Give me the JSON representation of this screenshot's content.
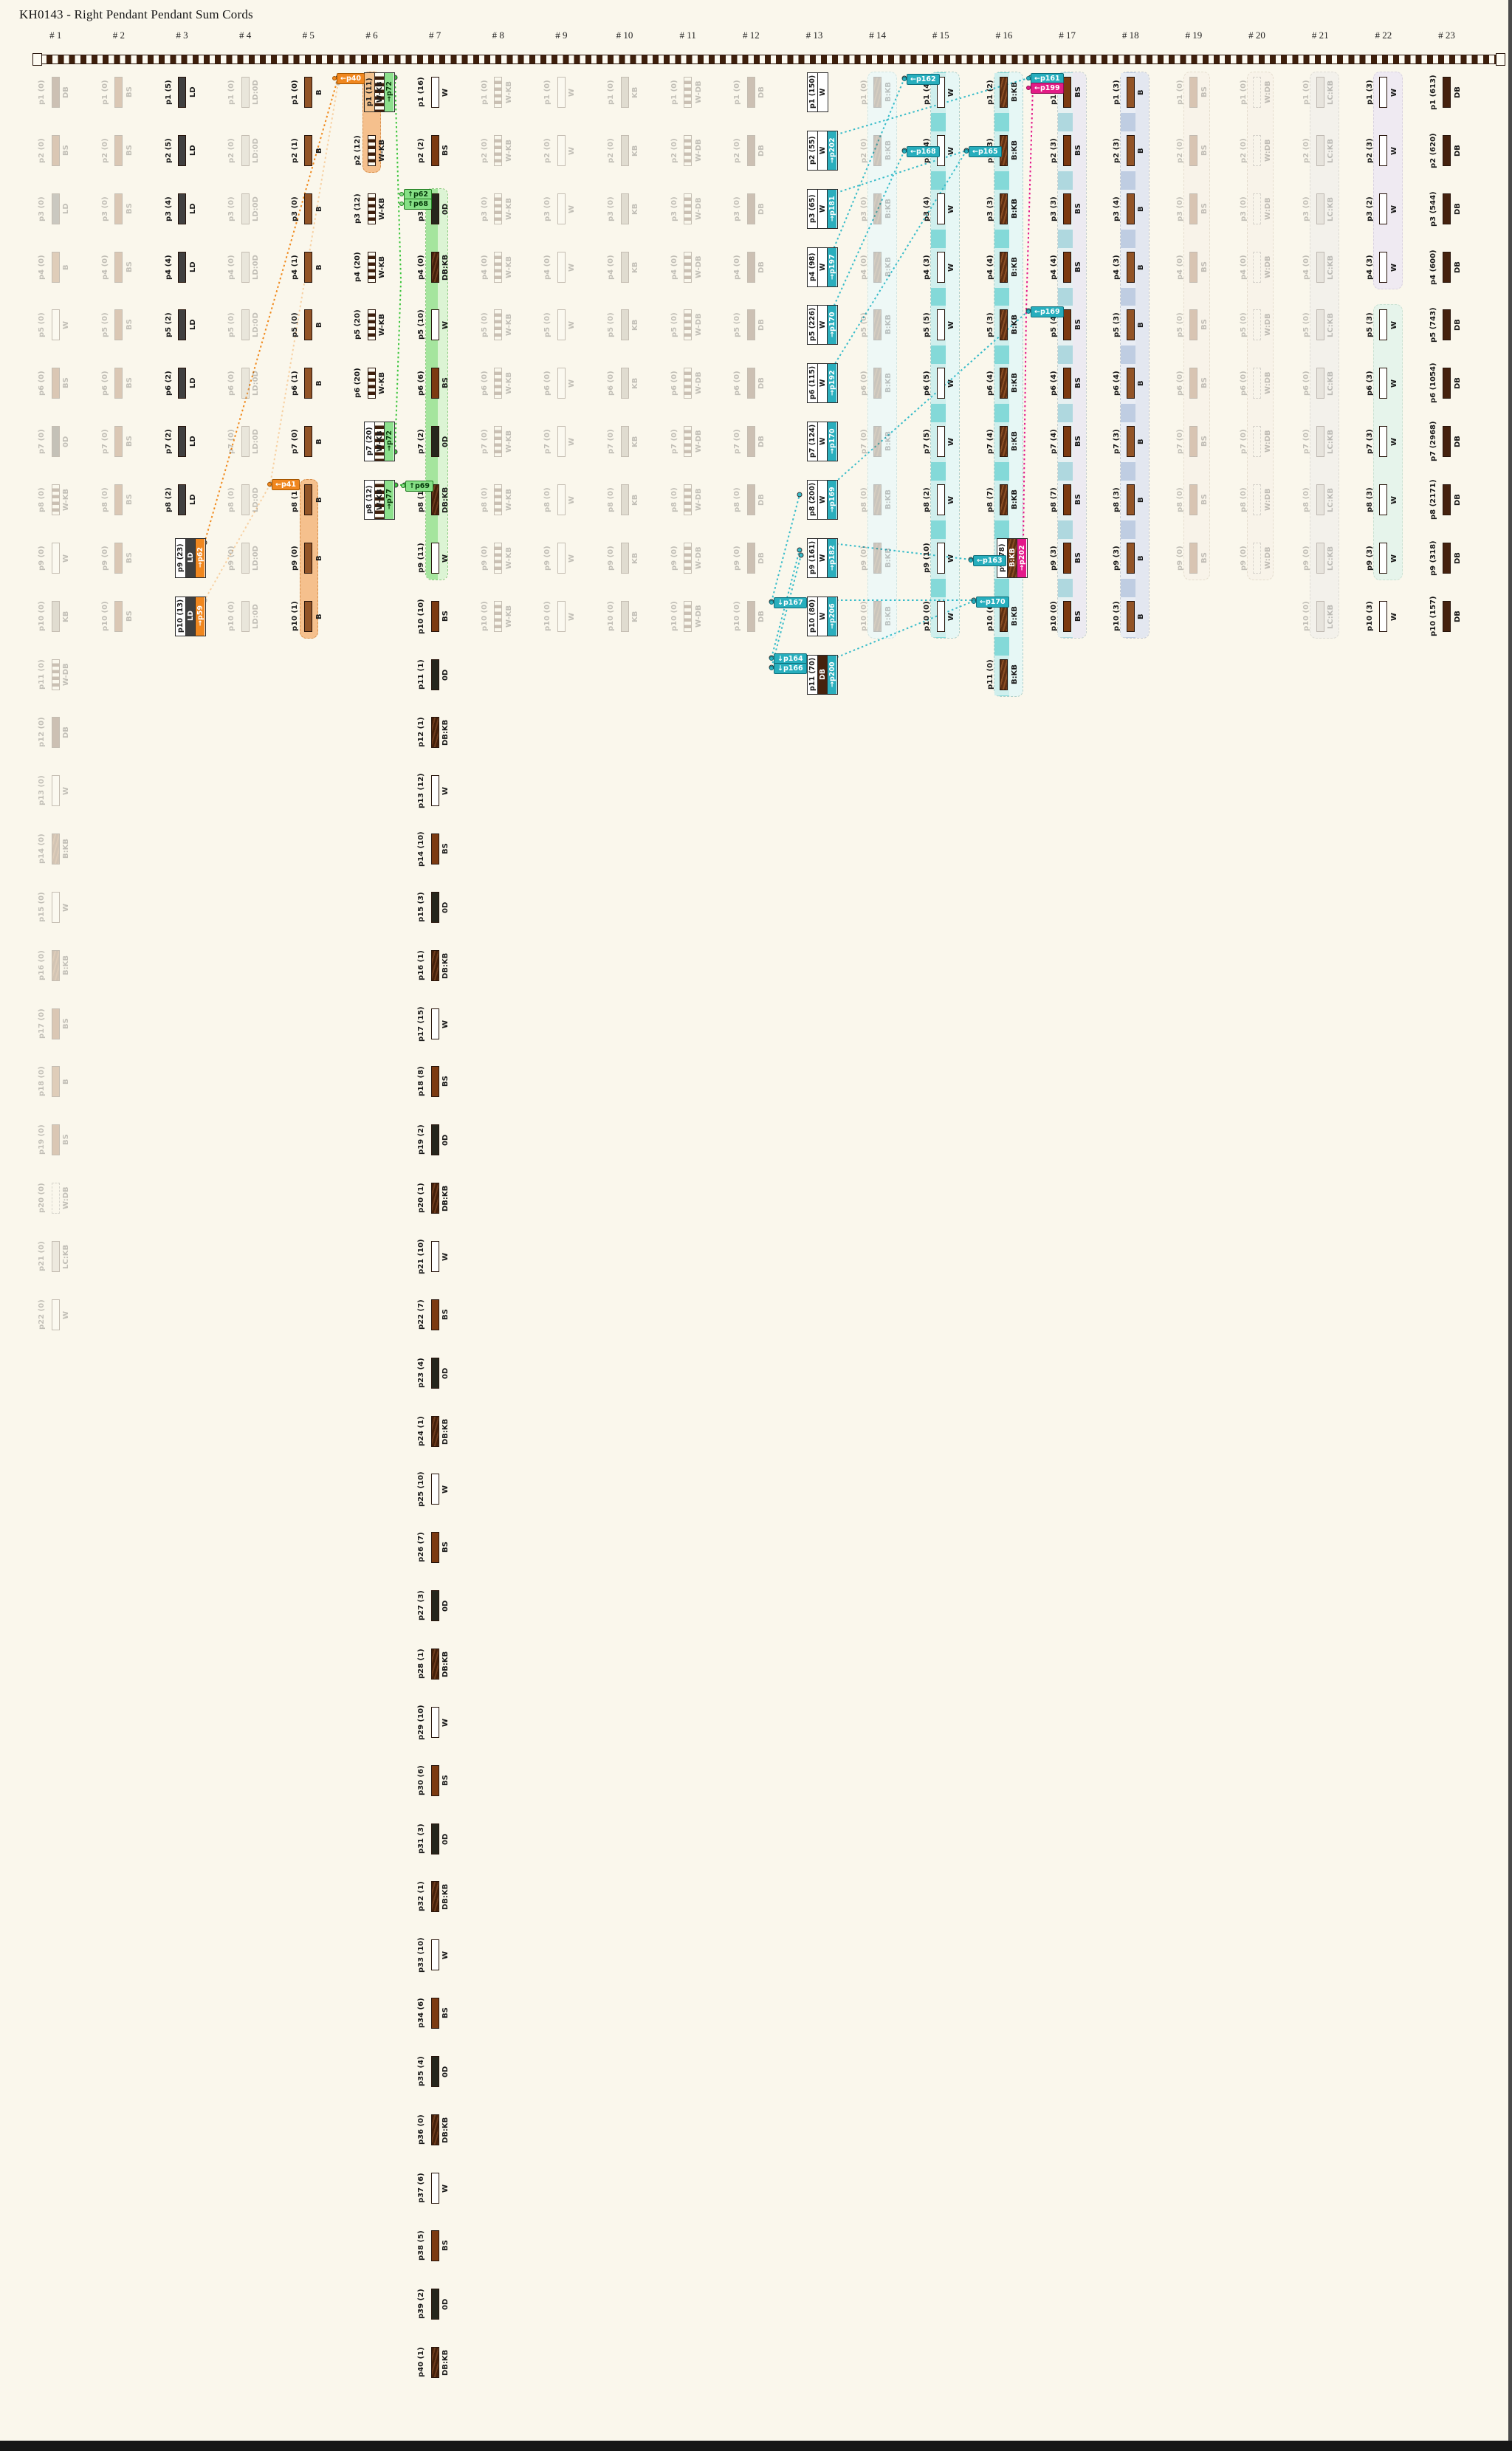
{
  "title": "KH0143 - Right Pendant Pendant Sum Cords",
  "headers": [
    "# 1",
    "# 2",
    "# 3",
    "# 4",
    "# 5",
    "# 6",
    "# 7",
    "# 8",
    "# 9",
    "# 10",
    "# 11",
    "# 12",
    "# 13",
    "# 14",
    "# 15",
    "# 16",
    "# 17",
    "# 18",
    "# 19",
    "# 20",
    "# 21",
    "# 22",
    "# 23"
  ],
  "palette": {
    "orange": "#F0871F",
    "green": "#4DC54D",
    "green_fill": "#8CE08C",
    "teal": "#2BAEBD",
    "magenta": "#E3198A",
    "cream": "#FAF7EC",
    "cord_dark": "#3E1F0C"
  },
  "columns": [
    {
      "n": 1,
      "faded": true,
      "value": 0,
      "codes": [
        "DB",
        "BS",
        "LD",
        "B",
        "W",
        "BS",
        "0D",
        "W-KB",
        "W",
        "KB",
        "W-DB",
        "DB",
        "W",
        "B:KB",
        "W",
        "B:KB",
        "BS",
        "B",
        "BS",
        "W:DB",
        "LC:KB",
        "W"
      ]
    },
    {
      "n": 2,
      "faded": true,
      "uniform": {
        "code": "BS",
        "count": 10,
        "value": 0
      }
    },
    {
      "n": 3,
      "faded": false,
      "pendants": [
        [
          "p1",
          5,
          "LD"
        ],
        [
          "p2",
          5,
          "LD"
        ],
        [
          "p3",
          4,
          "LD"
        ],
        [
          "p4",
          4,
          "LD"
        ],
        [
          "p5",
          2,
          "LD"
        ],
        [
          "p6",
          2,
          "LD"
        ],
        [
          "p7",
          2,
          "LD"
        ],
        [
          "p8",
          2,
          "LD"
        ],
        [
          "p9",
          23,
          "LD",
          "→p62",
          "orange",
          true
        ],
        [
          "p10",
          13,
          "LD",
          "→p59",
          "orange",
          true
        ]
      ]
    },
    {
      "n": 4,
      "faded": true,
      "uniform": {
        "code": "LD:0D",
        "count": 10,
        "value": 0
      }
    },
    {
      "n": 5,
      "faded": false,
      "pendants": [
        [
          "p1",
          0,
          "B"
        ],
        [
          "p2",
          1,
          "B"
        ],
        [
          "p3",
          0,
          "B"
        ],
        [
          "p4",
          1,
          "B"
        ],
        [
          "p5",
          0,
          "B"
        ],
        [
          "p6",
          1,
          "B"
        ],
        [
          "p7",
          0,
          "B"
        ],
        [
          "p8",
          1,
          "B"
        ],
        [
          "p9",
          0,
          "B"
        ],
        [
          "p10",
          1,
          "B"
        ]
      ]
    },
    {
      "n": 6,
      "faded": false,
      "pendants": [
        [
          "p1",
          11,
          "W-KB",
          "→p72",
          "green",
          true,
          "tan"
        ],
        [
          "p2",
          12,
          "W-KB"
        ],
        [
          "p3",
          12,
          "W-KB"
        ],
        [
          "p4",
          20,
          "W-KB"
        ],
        [
          "p5",
          20,
          "W-KB"
        ],
        [
          "p6",
          20,
          "W-KB"
        ],
        [
          "p7",
          20,
          "W-KB",
          "→p72",
          "green",
          true
        ],
        [
          "p8",
          12,
          "W-KB",
          "→p77",
          "green",
          true
        ]
      ]
    },
    {
      "n": 7,
      "faded": false,
      "pendants": [
        [
          "p1",
          16,
          "W"
        ],
        [
          "p2",
          2,
          "BS"
        ],
        [
          "p3",
          1,
          "0D"
        ],
        [
          "p4",
          0,
          "DB:KB"
        ],
        [
          "p5",
          10,
          "W"
        ],
        [
          "p6",
          6,
          "BS"
        ],
        [
          "p7",
          2,
          "0D"
        ],
        [
          "p8",
          1,
          "DB:KB"
        ],
        [
          "p9",
          11,
          "W"
        ],
        [
          "p10",
          10,
          "BS"
        ],
        [
          "p11",
          1,
          "0D"
        ],
        [
          "p12",
          1,
          "DB:KB"
        ],
        [
          "p13",
          12,
          "W"
        ],
        [
          "p14",
          10,
          "BS"
        ],
        [
          "p15",
          3,
          "0D"
        ],
        [
          "p16",
          1,
          "DB:KB"
        ],
        [
          "p17",
          15,
          "W"
        ],
        [
          "p18",
          8,
          "BS"
        ],
        [
          "p19",
          2,
          "0D"
        ],
        [
          "p20",
          1,
          "DB:KB"
        ],
        [
          "p21",
          10,
          "W"
        ],
        [
          "p22",
          7,
          "BS"
        ],
        [
          "p23",
          4,
          "0D"
        ],
        [
          "p24",
          1,
          "DB:KB"
        ],
        [
          "p25",
          10,
          "W"
        ],
        [
          "p26",
          7,
          "BS"
        ],
        [
          "p27",
          3,
          "0D"
        ],
        [
          "p28",
          1,
          "DB:KB"
        ],
        [
          "p29",
          10,
          "W"
        ],
        [
          "p30",
          6,
          "BS"
        ],
        [
          "p31",
          3,
          "0D"
        ],
        [
          "p32",
          1,
          "DB:KB"
        ],
        [
          "p33",
          10,
          "W"
        ],
        [
          "p34",
          6,
          "BS"
        ],
        [
          "p35",
          4,
          "0D"
        ],
        [
          "p36",
          0,
          "DB:KB"
        ],
        [
          "p37",
          6,
          "W"
        ],
        [
          "p38",
          5,
          "BS"
        ],
        [
          "p39",
          2,
          "0D"
        ],
        [
          "p40",
          1,
          "DB:KB"
        ]
      ]
    },
    {
      "n": 8,
      "faded": true,
      "uniform": {
        "code": "W-KB",
        "count": 10,
        "value": 0
      }
    },
    {
      "n": 9,
      "faded": true,
      "uniform": {
        "code": "W",
        "count": 10,
        "value": 0
      }
    },
    {
      "n": 10,
      "faded": true,
      "uniform": {
        "code": "KB",
        "count": 10,
        "value": 0
      }
    },
    {
      "n": 11,
      "faded": true,
      "uniform": {
        "code": "W-DB",
        "count": 10,
        "value": 0
      }
    },
    {
      "n": 12,
      "faded": true,
      "uniform": {
        "code": "DB",
        "count": 10,
        "value": 0
      }
    },
    {
      "n": 13,
      "faded": false,
      "pendants": [
        [
          "p1",
          150,
          "W",
          null,
          null,
          true
        ],
        [
          "p2",
          55,
          "W",
          "→p202",
          "teal",
          true
        ],
        [
          "p3",
          65,
          "W",
          "→p181",
          "teal",
          true
        ],
        [
          "p4",
          98,
          "W",
          "→p197",
          "teal",
          true
        ],
        [
          "p5",
          226,
          "W",
          "→p170",
          "teal",
          true
        ],
        [
          "p6",
          115,
          "W",
          "→p192",
          "teal",
          true
        ],
        [
          "p7",
          124,
          "W",
          "→p170",
          "teal",
          true
        ],
        [
          "p8",
          200,
          "W",
          "→p169",
          "teal",
          true
        ],
        [
          "p9",
          161,
          "W",
          "→p182",
          "teal",
          true
        ],
        [
          "p10",
          80,
          "W",
          "→p206",
          "teal",
          true
        ],
        [
          "p11",
          70,
          "DB",
          "→p200",
          "teal",
          true
        ]
      ]
    },
    {
      "n": 14,
      "faded": true,
      "uniform": {
        "code": "B:KB",
        "count": 10,
        "value": 0
      }
    },
    {
      "n": 15,
      "faded": false,
      "pendants": [
        [
          "p1",
          4,
          "W"
        ],
        [
          "p2",
          4,
          "W"
        ],
        [
          "p3",
          4,
          "W"
        ],
        [
          "p4",
          3,
          "W"
        ],
        [
          "p5",
          5,
          "W"
        ],
        [
          "p6",
          5,
          "W"
        ],
        [
          "p7",
          5,
          "W"
        ],
        [
          "p8",
          2,
          "W"
        ],
        [
          "p9",
          10,
          "W"
        ],
        [
          "p10",
          0,
          "W"
        ]
      ]
    },
    {
      "n": 16,
      "faded": false,
      "pendants": [
        [
          "p1",
          2,
          "B:KB"
        ],
        [
          "p2",
          3,
          "B:KB"
        ],
        [
          "p3",
          3,
          "B:KB"
        ],
        [
          "p4",
          4,
          "B:KB"
        ],
        [
          "p5",
          3,
          "B:KB"
        ],
        [
          "p6",
          4,
          "B:KB"
        ],
        [
          "p7",
          4,
          "B:KB"
        ],
        [
          "p8",
          7,
          "B:KB"
        ],
        [
          "p9",
          78,
          "B:KB",
          "→p202",
          "magenta",
          true
        ],
        [
          "p10",
          6,
          "B:KB"
        ],
        [
          "p11",
          0,
          "B:KB"
        ]
      ]
    },
    {
      "n": 17,
      "faded": false,
      "pendants": [
        [
          "p1",
          3,
          "BS"
        ],
        [
          "p2",
          3,
          "BS"
        ],
        [
          "p3",
          3,
          "BS"
        ],
        [
          "p4",
          4,
          "BS"
        ],
        [
          "p5",
          4,
          "BS"
        ],
        [
          "p6",
          4,
          "BS"
        ],
        [
          "p7",
          4,
          "BS"
        ],
        [
          "p8",
          7,
          "BS"
        ],
        [
          "p9",
          3,
          "BS"
        ],
        [
          "p10",
          0,
          "BS"
        ]
      ]
    },
    {
      "n": 18,
      "faded": false,
      "pendants": [
        [
          "p1",
          3,
          "B"
        ],
        [
          "p2",
          3,
          "B"
        ],
        [
          "p3",
          4,
          "B"
        ],
        [
          "p4",
          3,
          "B"
        ],
        [
          "p5",
          3,
          "B"
        ],
        [
          "p6",
          4,
          "B"
        ],
        [
          "p7",
          3,
          "B"
        ],
        [
          "p8",
          3,
          "B"
        ],
        [
          "p9",
          3,
          "B"
        ],
        [
          "p10",
          3,
          "B"
        ]
      ]
    },
    {
      "n": 19,
      "faded": true,
      "uniform": {
        "code": "BS",
        "count": 9,
        "value": 0
      }
    },
    {
      "n": 20,
      "faded": true,
      "uniform": {
        "code": "W:DB",
        "count": 9,
        "value": 0
      }
    },
    {
      "n": 21,
      "faded": true,
      "uniform": {
        "code": "LC:KB",
        "count": 10,
        "value": 0
      }
    },
    {
      "n": 22,
      "faded": false,
      "pendants": [
        [
          "p1",
          3,
          "W"
        ],
        [
          "p2",
          3,
          "W"
        ],
        [
          "p3",
          2,
          "W"
        ],
        [
          "p4",
          3,
          "W"
        ],
        [
          "p5",
          3,
          "W"
        ],
        [
          "p6",
          3,
          "W"
        ],
        [
          "p7",
          3,
          "W"
        ],
        [
          "p8",
          3,
          "W"
        ],
        [
          "p9",
          3,
          "W"
        ],
        [
          "p10",
          3,
          "W"
        ]
      ]
    },
    {
      "n": 23,
      "faded": false,
      "pendants": [
        [
          "p1",
          613,
          "DB"
        ],
        [
          "p2",
          620,
          "DB"
        ],
        [
          "p3",
          544,
          "DB"
        ],
        [
          "p4",
          600,
          "DB"
        ],
        [
          "p5",
          743,
          "DB"
        ],
        [
          "p6",
          1054,
          "DB"
        ],
        [
          "p7",
          2968,
          "DB"
        ],
        [
          "p8",
          2171,
          "DB"
        ],
        [
          "p9",
          318,
          "DB"
        ],
        [
          "p10",
          157,
          "DB"
        ]
      ]
    }
  ],
  "bands": [
    [
      5,
      8,
      10,
      "orange"
    ],
    [
      6,
      1,
      2,
      "orange"
    ],
    [
      7,
      3,
      9,
      "green"
    ],
    [
      14,
      1,
      10,
      "paleteal"
    ],
    [
      15,
      1,
      10,
      "teal"
    ],
    [
      16,
      1,
      11,
      "teal"
    ],
    [
      17,
      1,
      10,
      "bluegrayA"
    ],
    [
      18,
      1,
      10,
      "bluegrayB"
    ],
    [
      19,
      1,
      9,
      "palebeige"
    ],
    [
      20,
      1,
      9,
      "palebeige"
    ],
    [
      21,
      1,
      10,
      "palegray"
    ],
    [
      22,
      1,
      4,
      "lavender"
    ],
    [
      22,
      5,
      9,
      "mint"
    ]
  ],
  "connector_boxes": [
    [
      "←p40",
      "orange",
      456,
      99
    ],
    [
      "←p41",
      "orange",
      368,
      649
    ],
    [
      "↑p62",
      "green",
      547,
      256
    ],
    [
      "↑p68",
      "green",
      547,
      269
    ],
    [
      "↑p69",
      "green",
      549,
      651
    ],
    [
      "←p162",
      "teal",
      1228,
      100
    ],
    [
      "←p168",
      "teal",
      1228,
      198
    ],
    [
      "←p165",
      "teal",
      1312,
      198
    ],
    [
      "←p161",
      "teal",
      1396,
      99
    ],
    [
      "←p199",
      "magenta",
      1396,
      112
    ],
    [
      "←p169",
      "teal",
      1396,
      415
    ],
    [
      "←p163",
      "teal",
      1318,
      752
    ],
    [
      "←p170",
      "teal",
      1322,
      808
    ],
    [
      "↓p167",
      "teal",
      1048,
      809
    ],
    [
      "↓p164",
      "teal",
      1048,
      885
    ],
    [
      "↓p166",
      "teal",
      1048,
      898
    ]
  ],
  "links": [
    [
      "orange",
      1,
      [
        [
          458,
          105
        ],
        [
          277,
          735
        ]
      ]
    ],
    [
      "orange",
      0.35,
      [
        [
          458,
          112
        ],
        [
          366,
          656
        ]
      ]
    ],
    [
      "orange",
      0.35,
      [
        [
          366,
          656
        ],
        [
          277,
          813
        ]
      ]
    ],
    [
      "green",
      1,
      [
        [
          535,
          105
        ],
        [
          543,
          380
        ],
        [
          535,
          612
        ]
      ]
    ],
    [
      "green",
      1,
      [
        [
          536,
          657
        ],
        [
          548,
          657
        ]
      ]
    ],
    [
      "magenta",
      1,
      [
        [
          1399,
          117
        ],
        [
          1390,
          420
        ],
        [
          1386,
          734
        ]
      ]
    ],
    [
      "teal",
      1,
      [
        [
          1127,
          184
        ],
        [
          1396,
          105
        ]
      ]
    ],
    [
      "teal",
      1,
      [
        [
          1127,
          263
        ],
        [
          1309,
          204
        ]
      ]
    ],
    [
      "teal",
      1,
      [
        [
          1225,
          106
        ],
        [
          1127,
          342
        ]
      ]
    ],
    [
      "teal",
      1,
      [
        [
          1225,
          204
        ],
        [
          1127,
          420
        ]
      ]
    ],
    [
      "teal",
      1,
      [
        [
          1309,
          204
        ],
        [
          1127,
          499
        ]
      ]
    ],
    [
      "teal",
      1,
      [
        [
          1393,
          421
        ],
        [
          1127,
          657
        ]
      ]
    ],
    [
      "teal",
      1,
      [
        [
          1127,
          736
        ],
        [
          1315,
          758
        ]
      ]
    ],
    [
      "teal",
      1,
      [
        [
          1319,
          814
        ],
        [
          1127,
          893
        ]
      ]
    ],
    [
      "teal",
      1,
      [
        [
          1127,
          813
        ],
        [
          1319,
          813
        ]
      ]
    ],
    [
      "teal",
      1,
      [
        [
          1045,
          815
        ],
        [
          1083,
          670
        ]
      ]
    ],
    [
      "teal",
      1,
      [
        [
          1045,
          891
        ],
        [
          1083,
          745
        ]
      ]
    ],
    [
      "teal",
      1,
      [
        [
          1045,
          904
        ],
        [
          1085,
          752
        ]
      ]
    ]
  ]
}
